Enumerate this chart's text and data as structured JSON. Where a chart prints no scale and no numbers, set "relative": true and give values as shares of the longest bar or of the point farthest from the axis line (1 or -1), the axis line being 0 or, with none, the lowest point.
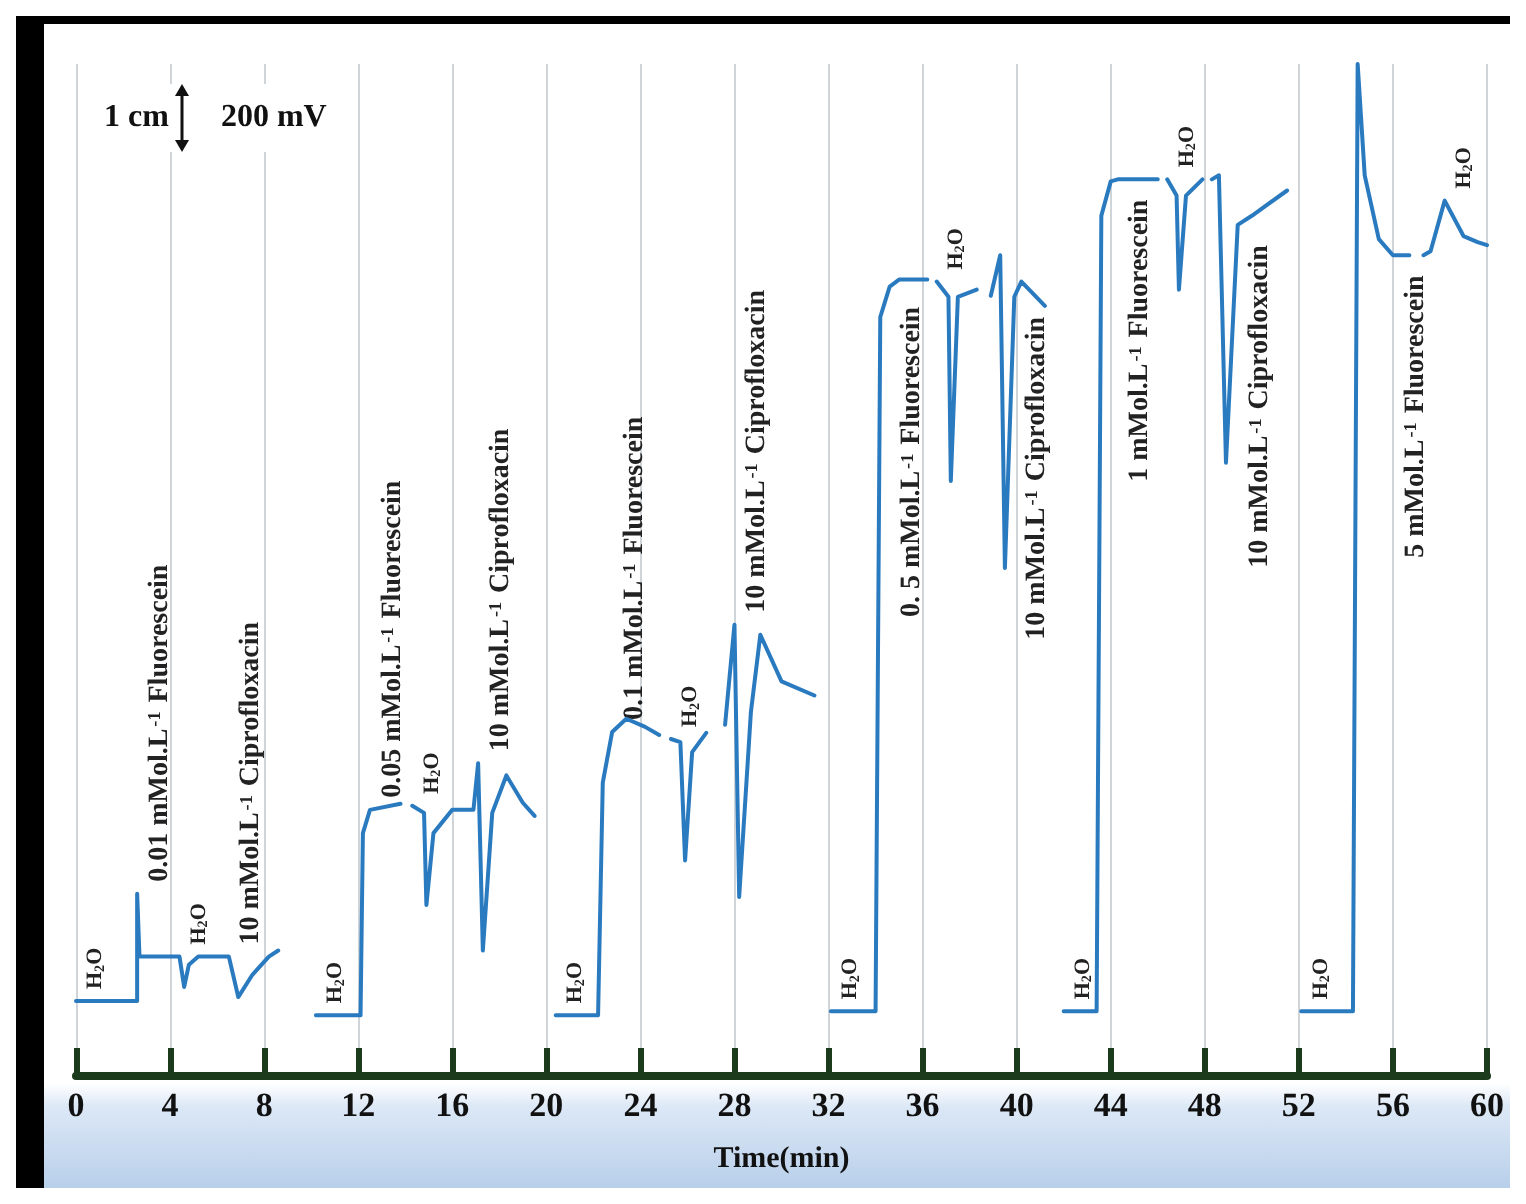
{
  "chart_data": {
    "type": "line",
    "relative": true,
    "xlabel": "Time(min)",
    "xlim": [
      0,
      60
    ],
    "xticks": [
      0,
      4,
      8,
      12,
      16,
      20,
      24,
      28,
      32,
      36,
      40,
      44,
      48,
      52,
      56,
      60
    ],
    "grid": "x",
    "marker": "none",
    "line_style": "solid",
    "series": [
      {
        "color": "#2a7ac0",
        "x": [
          0,
          2.6,
          2.6,
          2.7,
          4.4,
          4.6,
          4.8,
          5.2,
          6.5,
          6.9,
          7.5,
          8.2,
          8.6,
          9.5,
          10.2,
          12.1,
          12.2,
          12.5,
          13.8,
          14.0,
          14.3,
          14.8,
          14.9,
          15.2,
          16.0,
          16.9,
          17.1,
          17.3,
          17.7,
          18.3,
          19.0,
          19.5,
          19.8,
          20.4,
          22.2,
          22.4,
          22.8,
          23.4,
          24.2,
          24.8,
          25.0,
          25.3,
          25.7,
          25.9,
          26.2,
          26.8,
          27.2,
          27.6,
          28.0,
          28.2,
          28.7,
          29.1,
          30.0,
          31.4,
          31.8,
          32.1,
          34.0,
          34.2,
          34.6,
          35.0,
          36.2,
          36.4,
          36.6,
          37.1,
          37.2,
          37.5,
          38.3,
          38.6,
          38.9,
          39.3,
          39.5,
          39.9,
          40.2,
          41.2,
          41.6,
          42.0,
          43.4,
          43.6,
          44.0,
          44.3,
          46.0,
          46.2,
          46.4,
          46.8,
          46.9,
          47.2,
          47.9,
          48.1,
          48.3,
          48.6,
          48.9,
          49.4,
          50.0,
          51.5,
          51.8,
          52.1,
          54.3,
          54.5,
          54.8,
          55.4,
          56.0,
          56.7,
          57.0,
          57.3,
          57.6,
          58.2,
          59.0,
          59.6,
          60
        ],
        "values": [
          0.074,
          0.074,
          0.18,
          0.118,
          0.118,
          0.088,
          0.11,
          0.118,
          0.118,
          0.078,
          0.1,
          0.118,
          0.124,
          null,
          0.06,
          0.06,
          0.24,
          0.263,
          0.269,
          null,
          0.267,
          0.26,
          0.169,
          0.24,
          0.263,
          0.263,
          0.309,
          0.124,
          0.26,
          0.297,
          0.27,
          0.257,
          null,
          0.06,
          0.06,
          0.29,
          0.34,
          0.353,
          0.345,
          0.337,
          null,
          0.333,
          0.33,
          0.213,
          0.32,
          0.339,
          null,
          0.347,
          0.446,
          0.177,
          0.36,
          0.436,
          0.39,
          0.376,
          null,
          0.064,
          0.064,
          0.75,
          0.78,
          0.787,
          0.787,
          null,
          0.785,
          0.77,
          0.588,
          0.77,
          0.777,
          null,
          0.771,
          0.811,
          0.502,
          0.77,
          0.785,
          0.761,
          null,
          0.064,
          0.064,
          0.85,
          0.884,
          0.886,
          0.886,
          null,
          0.886,
          0.87,
          0.777,
          0.87,
          0.886,
          null,
          0.886,
          0.89,
          0.606,
          0.841,
          0.85,
          0.875,
          null,
          0.064,
          0.064,
          1.0,
          0.89,
          0.827,
          0.811,
          0.811,
          null,
          0.811,
          0.815,
          0.865,
          0.83,
          0.824,
          0.821
        ]
      }
    ],
    "annotations": [
      "1 cm",
      "200 mV",
      {
        "text": "H$_{2}$O",
        "x": 0,
        "y": 0.074
      },
      {
        "text": "0.01 mMol.L$^{-1}$ Fluorescein",
        "x": 2.6,
        "y": 0.18
      },
      {
        "text": "H$_{2}$O",
        "x": 4.4,
        "y": 0.118
      },
      {
        "text": "10 mMol.L$^{-1}$ Ciprofloxacin",
        "x": 6.5,
        "y": 0.118
      },
      {
        "text": "H$_{2}$O",
        "x": 10.2,
        "y": 0.06
      },
      {
        "text": "0.05 mMol.L$^{-1}$ Fluorescein",
        "x": 12.5,
        "y": 0.263
      },
      {
        "text": "H$_{2}$O",
        "x": 14.3,
        "y": 0.267
      },
      {
        "text": "10 mMol.L$^{-1}$ Ciprofloxacin",
        "x": 17.1,
        "y": 0.309
      },
      {
        "text": "H$_{2}$O",
        "x": 20.4,
        "y": 0.06
      },
      {
        "text": "0.1 mMol.L$^{-1}$ Fluorescein",
        "x": 22.8,
        "y": 0.34
      },
      {
        "text": "H$_{2}$O",
        "x": 25.3,
        "y": 0.333
      },
      {
        "text": "10 mMol.L$^{-1}$ Ciprofloxacin",
        "x": 28.0,
        "y": 0.446
      },
      {
        "text": "H$_{2}$O",
        "x": 32.1,
        "y": 0.064
      },
      {
        "text": "0. 5 mMol.L$^{-1}$ Fluorescein",
        "x": 34.6,
        "y": 0.78
      },
      {
        "text": "H$_{2}$O",
        "x": 36.6,
        "y": 0.785
      },
      {
        "text": "10 mMol.L$^{-1}$ Ciprofloxacin",
        "x": 39.9,
        "y": 0.77
      },
      {
        "text": "H$_{2}$O",
        "x": 42.0,
        "y": 0.064
      },
      {
        "text": "1 mMol.L$^{-1}$ Fluorescein",
        "x": 44.3,
        "y": 0.886
      },
      {
        "text": "H$_{2}$O",
        "x": 46.4,
        "y": 0.886
      },
      {
        "text": "10 mMol.L$^{-1}$ Ciprofloxacin",
        "x": 49.4,
        "y": 0.841
      },
      {
        "text": "H$_{2}$O",
        "x": 52.1,
        "y": 0.064
      },
      {
        "text": "5 mMol.L$^{-1}$ Fluorescein",
        "x": 56.0,
        "y": 0.811
      },
      {
        "text": "H$_{2}$O",
        "x": 58.2,
        "y": 0.865
      }
    ]
  }
}
